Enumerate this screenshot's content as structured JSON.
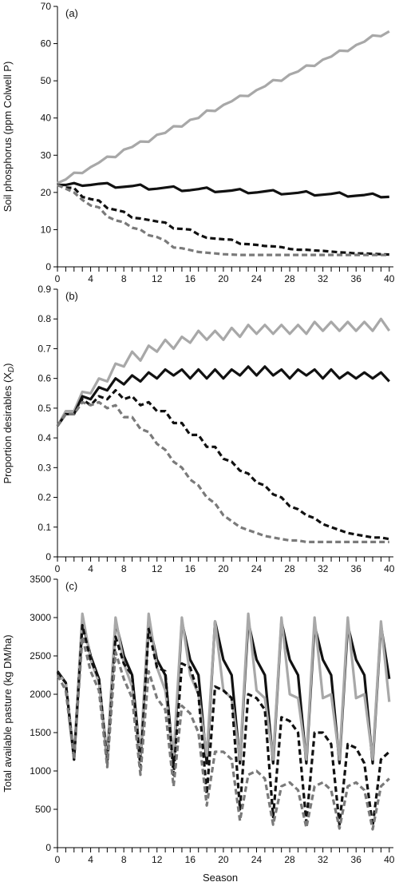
{
  "colors": {
    "high_p_black": "#111111",
    "high_p_grey": "#a8a8a8",
    "low_p_black": "#111111",
    "low_p_grey": "#7a7a7a",
    "axis": "#000000"
  },
  "x_axis": {
    "label": "Season",
    "ticks": [
      0,
      4,
      8,
      12,
      16,
      20,
      24,
      28,
      32,
      36,
      40
    ],
    "minor_tick_step": 1,
    "range": [
      0,
      40.5
    ]
  },
  "chart_data": [
    {
      "type": "line",
      "panel_label": "(a)",
      "title": "",
      "xlabel": "",
      "ylabel": "Soil phosphorus (ppm Colwell P)",
      "ylim": [
        0,
        70
      ],
      "yticks": [
        0,
        10,
        20,
        30,
        40,
        50,
        60,
        70
      ],
      "grid": false,
      "series": [
        {
          "style": "solid-grey",
          "x": [
            0,
            1,
            2,
            3,
            4,
            5,
            6,
            7,
            8,
            9,
            10,
            11,
            12,
            13,
            14,
            15,
            16,
            17,
            18,
            19,
            20,
            21,
            22,
            23,
            24,
            25,
            26,
            27,
            28,
            29,
            30,
            31,
            32,
            33,
            34,
            35,
            36,
            37,
            38,
            39,
            40
          ],
          "values": [
            22.5,
            23.5,
            25.3,
            25.2,
            26.8,
            28,
            29.6,
            29.5,
            31.5,
            32.2,
            33.7,
            33.6,
            35.5,
            36,
            37.8,
            37.7,
            39.5,
            40,
            42,
            41.9,
            43.5,
            44.5,
            46,
            45.9,
            47.5,
            48.5,
            50.2,
            50,
            51.7,
            52.5,
            54.1,
            54,
            55.7,
            56.5,
            58.1,
            58,
            59.6,
            60.5,
            62.2,
            62,
            63.3
          ]
        },
        {
          "style": "solid-black",
          "x": [
            0,
            1,
            2,
            3,
            4,
            5,
            6,
            7,
            8,
            9,
            10,
            11,
            12,
            13,
            14,
            15,
            16,
            17,
            18,
            19,
            20,
            21,
            22,
            23,
            24,
            25,
            26,
            27,
            28,
            29,
            30,
            31,
            32,
            33,
            34,
            35,
            36,
            37,
            38,
            39,
            40
          ],
          "values": [
            22,
            22,
            22.5,
            21.8,
            22,
            22.3,
            22.5,
            21.3,
            21.5,
            21.7,
            22.1,
            20.8,
            21,
            21.3,
            21.6,
            20.4,
            20.6,
            20.9,
            21.3,
            20.1,
            20.3,
            20.5,
            20.9,
            19.8,
            20,
            20.3,
            20.6,
            19.5,
            19.7,
            19.9,
            20.3,
            19.2,
            19.4,
            19.6,
            20,
            18.9,
            19.1,
            19.3,
            19.7,
            18.7,
            18.8
          ]
        },
        {
          "style": "dashed-black",
          "x": [
            0,
            1,
            2,
            3,
            4,
            5,
            6,
            7,
            8,
            9,
            10,
            11,
            12,
            13,
            14,
            15,
            16,
            17,
            18,
            19,
            20,
            21,
            22,
            23,
            24,
            25,
            26,
            27,
            28,
            29,
            30,
            31,
            32,
            33,
            34,
            35,
            36,
            37,
            38,
            39,
            40
          ],
          "values": [
            22,
            21.3,
            21.2,
            18.8,
            18.2,
            17.8,
            15.8,
            15.3,
            14.8,
            13.2,
            13,
            12.6,
            12.2,
            11.9,
            10.3,
            10.2,
            10,
            8.7,
            7.8,
            7.6,
            7.4,
            7.3,
            6.2,
            6.1,
            5.9,
            5.6,
            5.5,
            5.3,
            4.8,
            4.6,
            4.6,
            4.4,
            4.3,
            4.1,
            3.9,
            3.8,
            3.6,
            3.6,
            3.5,
            3.4,
            3.3
          ]
        },
        {
          "style": "dashed-grey",
          "x": [
            0,
            1,
            2,
            3,
            4,
            5,
            6,
            7,
            8,
            9,
            10,
            11,
            12,
            13,
            14,
            15,
            16,
            17,
            18,
            19,
            20,
            21,
            22,
            23,
            24,
            25,
            26,
            27,
            28,
            29,
            30,
            31,
            32,
            33,
            34,
            35,
            36,
            37,
            38,
            39,
            40
          ],
          "values": [
            22,
            21,
            20,
            18,
            16.5,
            16,
            13.5,
            12.5,
            12,
            10.5,
            10,
            8.5,
            8,
            7,
            5.2,
            5,
            4.5,
            4,
            3.8,
            3.6,
            3.4,
            3.3,
            3.2,
            3.2,
            3.2,
            3.2,
            3.2,
            3.2,
            3.2,
            3.2,
            3.2,
            3.2,
            3.2,
            3.2,
            3.2,
            3.2,
            3.2,
            3.2,
            3.2,
            3.2,
            3.2
          ]
        }
      ]
    },
    {
      "type": "line",
      "panel_label": "(b)",
      "title": "",
      "xlabel": "",
      "ylabel": "Proportion desirables (X",
      "ylabel_sub": "D",
      "ylabel_close": ")",
      "ylim": [
        0,
        0.9
      ],
      "yticks": [
        0,
        0.1,
        0.2,
        0.3,
        0.4,
        0.5,
        0.6,
        0.7,
        0.8,
        0.9
      ],
      "grid": false,
      "series": [
        {
          "style": "solid-grey",
          "x": [
            0,
            1,
            2,
            3,
            4,
            5,
            6,
            7,
            8,
            9,
            10,
            11,
            12,
            13,
            14,
            15,
            16,
            17,
            18,
            19,
            20,
            21,
            22,
            23,
            24,
            25,
            26,
            27,
            28,
            29,
            30,
            31,
            32,
            33,
            34,
            35,
            36,
            37,
            38,
            39,
            40
          ],
          "values": [
            0.44,
            0.49,
            0.49,
            0.555,
            0.55,
            0.6,
            0.59,
            0.65,
            0.64,
            0.69,
            0.66,
            0.71,
            0.69,
            0.73,
            0.7,
            0.74,
            0.72,
            0.76,
            0.73,
            0.76,
            0.73,
            0.77,
            0.74,
            0.78,
            0.75,
            0.78,
            0.75,
            0.78,
            0.75,
            0.78,
            0.75,
            0.79,
            0.76,
            0.79,
            0.76,
            0.79,
            0.76,
            0.79,
            0.76,
            0.8,
            0.76
          ]
        },
        {
          "style": "solid-black",
          "x": [
            0,
            1,
            2,
            3,
            4,
            5,
            6,
            7,
            8,
            9,
            10,
            11,
            12,
            13,
            14,
            15,
            16,
            17,
            18,
            19,
            20,
            21,
            22,
            23,
            24,
            25,
            26,
            27,
            28,
            29,
            30,
            31,
            32,
            33,
            34,
            35,
            36,
            37,
            38,
            39,
            40
          ],
          "values": [
            0.44,
            0.48,
            0.48,
            0.54,
            0.53,
            0.57,
            0.56,
            0.6,
            0.58,
            0.61,
            0.59,
            0.62,
            0.6,
            0.63,
            0.61,
            0.63,
            0.6,
            0.63,
            0.6,
            0.63,
            0.6,
            0.63,
            0.61,
            0.64,
            0.61,
            0.64,
            0.61,
            0.63,
            0.6,
            0.63,
            0.61,
            0.63,
            0.6,
            0.63,
            0.6,
            0.62,
            0.6,
            0.62,
            0.6,
            0.62,
            0.59
          ]
        },
        {
          "style": "dashed-black",
          "x": [
            0,
            1,
            2,
            3,
            4,
            5,
            6,
            7,
            8,
            9,
            10,
            11,
            12,
            13,
            14,
            15,
            16,
            17,
            18,
            19,
            20,
            21,
            22,
            23,
            24,
            25,
            26,
            27,
            28,
            29,
            30,
            31,
            32,
            33,
            34,
            35,
            36,
            37,
            38,
            39,
            40
          ],
          "values": [
            0.44,
            0.48,
            0.48,
            0.53,
            0.51,
            0.54,
            0.53,
            0.56,
            0.53,
            0.54,
            0.51,
            0.52,
            0.49,
            0.49,
            0.45,
            0.45,
            0.41,
            0.41,
            0.37,
            0.37,
            0.33,
            0.32,
            0.29,
            0.28,
            0.25,
            0.24,
            0.21,
            0.2,
            0.17,
            0.16,
            0.14,
            0.13,
            0.11,
            0.1,
            0.09,
            0.08,
            0.075,
            0.07,
            0.065,
            0.065,
            0.06
          ]
        },
        {
          "style": "dashed-grey",
          "x": [
            0,
            1,
            2,
            3,
            4,
            5,
            6,
            7,
            8,
            9,
            10,
            11,
            12,
            13,
            14,
            15,
            16,
            17,
            18,
            19,
            20,
            21,
            22,
            23,
            24,
            25,
            26,
            27,
            28,
            29,
            30,
            31,
            32,
            33,
            34,
            35,
            36,
            37,
            38,
            39,
            40
          ],
          "values": [
            0.44,
            0.48,
            0.48,
            0.52,
            0.51,
            0.52,
            0.5,
            0.51,
            0.47,
            0.47,
            0.43,
            0.42,
            0.38,
            0.36,
            0.32,
            0.3,
            0.26,
            0.24,
            0.2,
            0.18,
            0.14,
            0.12,
            0.1,
            0.09,
            0.08,
            0.07,
            0.065,
            0.06,
            0.055,
            0.055,
            0.05,
            0.05,
            0.05,
            0.05,
            0.05,
            0.05,
            0.05,
            0.05,
            0.05,
            0.05,
            0.05
          ]
        }
      ]
    },
    {
      "type": "line",
      "panel_label": "(c)",
      "title": "",
      "xlabel": "Season",
      "ylabel": "Total available pasture (kg DM/ha)",
      "ylim": [
        0,
        3500
      ],
      "yticks": [
        0,
        500,
        1000,
        1500,
        2000,
        2500,
        3000,
        3500
      ],
      "grid": false,
      "series": [
        {
          "style": "solid-black",
          "x": [
            0,
            1,
            2,
            3,
            4,
            5,
            6,
            7,
            8,
            9,
            10,
            11,
            12,
            13,
            14,
            15,
            16,
            17,
            18,
            19,
            20,
            21,
            22,
            23,
            24,
            25,
            26,
            27,
            28,
            29,
            30,
            31,
            32,
            33,
            34,
            35,
            36,
            37,
            38,
            39,
            40
          ],
          "values": [
            2300,
            2150,
            1150,
            2950,
            2500,
            2200,
            1150,
            2950,
            2500,
            2250,
            1150,
            2950,
            2450,
            2250,
            1100,
            2950,
            2450,
            2250,
            1100,
            2950,
            2450,
            2250,
            1100,
            2950,
            2450,
            2250,
            1100,
            2950,
            2450,
            2250,
            1100,
            2900,
            2450,
            2250,
            1100,
            2900,
            2450,
            2250,
            1100,
            2900,
            2200
          ]
        },
        {
          "style": "solid-grey",
          "x": [
            0,
            1,
            2,
            3,
            4,
            5,
            6,
            7,
            8,
            9,
            10,
            11,
            12,
            13,
            14,
            15,
            16,
            17,
            18,
            19,
            20,
            21,
            22,
            23,
            24,
            25,
            26,
            27,
            28,
            29,
            30,
            31,
            32,
            33,
            34,
            35,
            36,
            37,
            38,
            39,
            40
          ],
          "values": [
            2280,
            2150,
            1200,
            3050,
            2450,
            2150,
            1200,
            3000,
            2400,
            2100,
            1200,
            3050,
            2350,
            2050,
            1200,
            3000,
            2250,
            2000,
            1200,
            2950,
            2050,
            1950,
            1150,
            3050,
            2050,
            1950,
            1150,
            3000,
            2000,
            1950,
            1150,
            3000,
            1950,
            2000,
            1150,
            3000,
            1950,
            2000,
            1150,
            2950,
            1900
          ]
        },
        {
          "style": "dashed-black",
          "x": [
            0,
            1,
            2,
            3,
            4,
            5,
            6,
            7,
            8,
            9,
            10,
            11,
            12,
            13,
            14,
            15,
            16,
            17,
            18,
            19,
            20,
            21,
            22,
            23,
            24,
            25,
            26,
            27,
            28,
            29,
            30,
            31,
            32,
            33,
            34,
            35,
            36,
            37,
            38,
            39,
            40
          ],
          "values": [
            2280,
            2150,
            1150,
            2900,
            2450,
            2200,
            1100,
            2750,
            2400,
            2250,
            1050,
            2850,
            2350,
            2300,
            950,
            2400,
            2350,
            2000,
            700,
            2100,
            2050,
            1950,
            500,
            2000,
            1950,
            1800,
            400,
            1700,
            1650,
            1500,
            330,
            1500,
            1500,
            1350,
            300,
            1350,
            1300,
            1100,
            280,
            1150,
            1250
          ]
        },
        {
          "style": "dashed-grey",
          "x": [
            0,
            1,
            2,
            3,
            4,
            5,
            6,
            7,
            8,
            9,
            10,
            11,
            12,
            13,
            14,
            15,
            16,
            17,
            18,
            19,
            20,
            21,
            22,
            23,
            24,
            25,
            26,
            27,
            28,
            29,
            30,
            31,
            32,
            33,
            34,
            35,
            36,
            37,
            38,
            39,
            40
          ],
          "values": [
            2250,
            2050,
            1150,
            2750,
            2300,
            2050,
            1050,
            2550,
            2200,
            1950,
            950,
            2300,
            1950,
            1800,
            800,
            1850,
            1750,
            1500,
            550,
            1250,
            1250,
            1150,
            350,
            950,
            1000,
            900,
            300,
            800,
            850,
            750,
            260,
            800,
            850,
            750,
            250,
            800,
            850,
            750,
            240,
            800,
            900
          ]
        }
      ]
    }
  ]
}
